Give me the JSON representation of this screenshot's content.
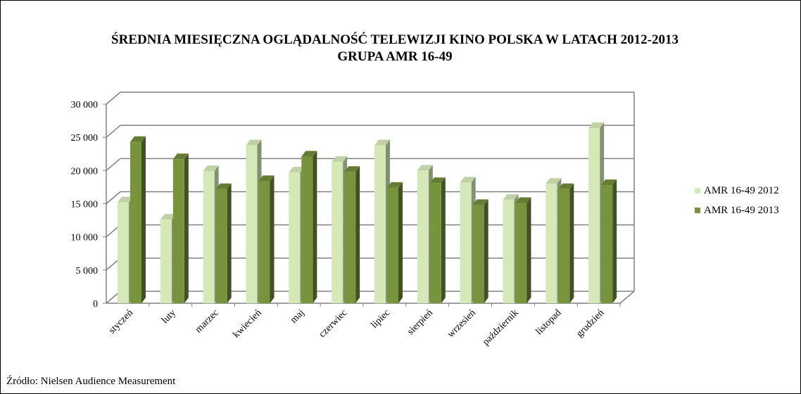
{
  "title_line1": "ŚREDNIA MIESIĘCZNA  OGLĄDALNOŚĆ TELEWIZJI  KINO POLSKA W LATACH 2012-2013",
  "title_line2": "GRUPA  AMR 16-49",
  "source": "Źródło: Nielsen Audience Measurement",
  "colors": {
    "series_2012": "#d5e8b8",
    "series_2013": "#77933c",
    "grid": "#808080"
  },
  "chart_data": {
    "type": "bar",
    "categories": [
      "styczeń",
      "luty",
      "marzec",
      "kwiecień",
      "maj",
      "czerwiec",
      "lipiec",
      "sierpień",
      "wrzesień",
      "październik",
      "listopad",
      "grudzień"
    ],
    "series": [
      {
        "name": "AMR 16-49 2012",
        "values": [
          15200,
          12600,
          19900,
          23800,
          19700,
          21300,
          23800,
          20000,
          18200,
          15600,
          18000,
          26400
        ]
      },
      {
        "name": "AMR 16-49 2013",
        "values": [
          24300,
          21700,
          17200,
          18400,
          22100,
          19800,
          17400,
          18100,
          14800,
          15100,
          17200,
          17800
        ]
      }
    ],
    "ylim": [
      0,
      30000
    ],
    "yticks": [
      "0",
      "5 000",
      "10 000",
      "15 000",
      "20 000",
      "25 000",
      "30 000"
    ],
    "legend_position": "right",
    "grid": true
  }
}
